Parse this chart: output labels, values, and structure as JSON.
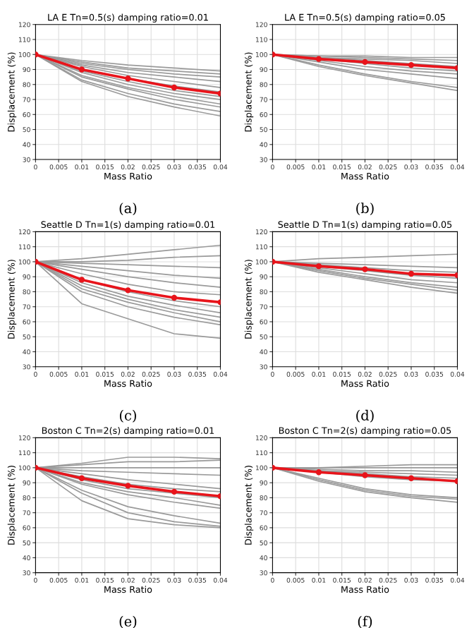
{
  "chart_data": [
    {
      "type": "line",
      "title": "LA E Tn=0.5(s) damping ratio=0.01",
      "xlabel": "Mass Ratio",
      "ylabel": "Displacement (%)",
      "x": [
        0,
        0.01,
        0.02,
        0.03,
        0.04
      ],
      "xlim": [
        0,
        0.04
      ],
      "xticks": [
        0,
        0.005,
        0.01,
        0.015,
        0.02,
        0.025,
        0.03,
        0.035,
        0.04
      ],
      "ylim": [
        30,
        120
      ],
      "yticks": [
        30,
        40,
        50,
        60,
        70,
        80,
        90,
        100,
        110,
        120
      ],
      "grid": true,
      "annotations": [
        "(a)"
      ],
      "series": [
        {
          "color": "#9a9a9a",
          "values": [
            100,
            96,
            93,
            91,
            89
          ]
        },
        {
          "color": "#9a9a9a",
          "values": [
            100,
            95,
            91,
            89,
            87
          ]
        },
        {
          "color": "#9a9a9a",
          "values": [
            100,
            94,
            90,
            87,
            85
          ]
        },
        {
          "color": "#9a9a9a",
          "values": [
            100,
            93,
            88,
            85,
            82
          ]
        },
        {
          "color": "#9a9a9a",
          "values": [
            100,
            92,
            86,
            82,
            78
          ]
        },
        {
          "color": "#9a9a9a",
          "values": [
            100,
            90,
            84,
            79,
            75
          ]
        },
        {
          "color": "#9a9a9a",
          "values": [
            100,
            89,
            82,
            76,
            72
          ]
        },
        {
          "color": "#9a9a9a",
          "values": [
            100,
            88,
            80,
            74,
            70
          ]
        },
        {
          "color": "#9a9a9a",
          "values": [
            100,
            86,
            78,
            72,
            67
          ]
        },
        {
          "color": "#9a9a9a",
          "values": [
            100,
            85,
            77,
            70,
            65
          ]
        },
        {
          "color": "#9a9a9a",
          "values": [
            100,
            83,
            74,
            67,
            62
          ]
        },
        {
          "color": "#9a9a9a",
          "values": [
            100,
            82,
            72,
            65,
            59
          ]
        },
        {
          "color": "#e8141b",
          "marker": "circle",
          "values": [
            100,
            90,
            84,
            78,
            74
          ]
        }
      ]
    },
    {
      "type": "line",
      "title": "LA E Tn=0.5(s) damping ratio=0.05",
      "xlabel": "Mass Ratio",
      "ylabel": "Displacement (%)",
      "x": [
        0,
        0.01,
        0.02,
        0.03,
        0.04
      ],
      "xlim": [
        0,
        0.04
      ],
      "xticks": [
        0,
        0.005,
        0.01,
        0.015,
        0.02,
        0.025,
        0.03,
        0.035,
        0.04
      ],
      "ylim": [
        30,
        120
      ],
      "yticks": [
        30,
        40,
        50,
        60,
        70,
        80,
        90,
        100,
        110,
        120
      ],
      "grid": true,
      "annotations": [
        "(b)"
      ],
      "series": [
        {
          "color": "#9a9a9a",
          "values": [
            100,
            99,
            99,
            98,
            98
          ]
        },
        {
          "color": "#9a9a9a",
          "values": [
            100,
            99,
            98,
            97,
            96
          ]
        },
        {
          "color": "#9a9a9a",
          "values": [
            100,
            98,
            97,
            96,
            94
          ]
        },
        {
          "color": "#9a9a9a",
          "values": [
            100,
            98,
            96,
            94,
            92
          ]
        },
        {
          "color": "#9a9a9a",
          "values": [
            100,
            97,
            94,
            91,
            89
          ]
        },
        {
          "color": "#9a9a9a",
          "values": [
            100,
            96,
            92,
            89,
            87
          ]
        },
        {
          "color": "#9a9a9a",
          "values": [
            100,
            95,
            90,
            87,
            84
          ]
        },
        {
          "color": "#9a9a9a",
          "values": [
            100,
            93,
            87,
            82,
            78
          ]
        },
        {
          "color": "#9a9a9a",
          "values": [
            100,
            92,
            86,
            81,
            76
          ]
        },
        {
          "color": "#e8141b",
          "marker": "circle",
          "values": [
            100,
            97,
            95,
            93,
            91
          ]
        }
      ]
    },
    {
      "type": "line",
      "title": "Seattle D Tn=1(s) damping ratio=0.01",
      "xlabel": "Mass Ratio",
      "ylabel": "Displacement (%)",
      "x": [
        0,
        0.01,
        0.02,
        0.03,
        0.04
      ],
      "xlim": [
        0,
        0.04
      ],
      "xticks": [
        0,
        0.005,
        0.01,
        0.015,
        0.02,
        0.025,
        0.03,
        0.035,
        0.04
      ],
      "ylim": [
        30,
        120
      ],
      "yticks": [
        30,
        40,
        50,
        60,
        70,
        80,
        90,
        100,
        110,
        120
      ],
      "grid": true,
      "annotations": [
        "(c)"
      ],
      "series": [
        {
          "color": "#9a9a9a",
          "values": [
            100,
            102,
            105,
            108,
            111
          ]
        },
        {
          "color": "#9a9a9a",
          "values": [
            100,
            100,
            101,
            103,
            104
          ]
        },
        {
          "color": "#9a9a9a",
          "values": [
            100,
            99,
            98,
            97,
            96
          ]
        },
        {
          "color": "#9a9a9a",
          "values": [
            100,
            97,
            94,
            91,
            89
          ]
        },
        {
          "color": "#9a9a9a",
          "values": [
            100,
            95,
            90,
            86,
            83
          ]
        },
        {
          "color": "#9a9a9a",
          "values": [
            100,
            92,
            85,
            80,
            78
          ]
        },
        {
          "color": "#9a9a9a",
          "values": [
            100,
            88,
            80,
            74,
            70
          ]
        },
        {
          "color": "#9a9a9a",
          "values": [
            100,
            86,
            77,
            71,
            66
          ]
        },
        {
          "color": "#9a9a9a",
          "values": [
            100,
            84,
            75,
            68,
            63
          ]
        },
        {
          "color": "#9a9a9a",
          "values": [
            100,
            82,
            73,
            66,
            60
          ]
        },
        {
          "color": "#9a9a9a",
          "values": [
            100,
            80,
            70,
            63,
            58
          ]
        },
        {
          "color": "#9a9a9a",
          "values": [
            100,
            72,
            62,
            52,
            49
          ]
        },
        {
          "color": "#e8141b",
          "marker": "circle",
          "values": [
            100,
            88,
            81,
            76,
            73
          ]
        }
      ]
    },
    {
      "type": "line",
      "title": "Seattle D Tn=1(s) damping ratio=0.05",
      "xlabel": "Mass Ratio",
      "ylabel": "Displacement (%)",
      "x": [
        0,
        0.01,
        0.02,
        0.03,
        0.04
      ],
      "xlim": [
        0,
        0.04
      ],
      "xticks": [
        0,
        0.005,
        0.01,
        0.015,
        0.02,
        0.025,
        0.03,
        0.035,
        0.04
      ],
      "ylim": [
        30,
        120
      ],
      "yticks": [
        30,
        40,
        50,
        60,
        70,
        80,
        90,
        100,
        110,
        120
      ],
      "grid": true,
      "annotations": [
        "(d)"
      ],
      "series": [
        {
          "color": "#9a9a9a",
          "values": [
            100,
            102,
            103,
            104,
            105
          ]
        },
        {
          "color": "#9a9a9a",
          "values": [
            100,
            99,
            98,
            97,
            96
          ]
        },
        {
          "color": "#9a9a9a",
          "values": [
            100,
            98,
            96,
            94,
            93
          ]
        },
        {
          "color": "#9a9a9a",
          "values": [
            100,
            97,
            94,
            91,
            89
          ]
        },
        {
          "color": "#9a9a9a",
          "values": [
            100,
            96,
            92,
            88,
            86
          ]
        },
        {
          "color": "#9a9a9a",
          "values": [
            100,
            95,
            90,
            86,
            83
          ]
        },
        {
          "color": "#9a9a9a",
          "values": [
            100,
            94,
            89,
            85,
            81
          ]
        },
        {
          "color": "#9a9a9a",
          "values": [
            100,
            93,
            88,
            83,
            79
          ]
        },
        {
          "color": "#e8141b",
          "marker": "circle",
          "values": [
            100,
            97,
            95,
            92,
            91
          ]
        }
      ]
    },
    {
      "type": "line",
      "title": "Boston C Tn=2(s) damping ratio=0.01",
      "xlabel": "Mass Ratio",
      "ylabel": "Displacement (%)",
      "x": [
        0,
        0.01,
        0.02,
        0.03,
        0.04
      ],
      "xlim": [
        0,
        0.04
      ],
      "xticks": [
        0,
        0.005,
        0.01,
        0.015,
        0.02,
        0.025,
        0.03,
        0.035,
        0.04
      ],
      "ylim": [
        30,
        120
      ],
      "yticks": [
        30,
        40,
        50,
        60,
        70,
        80,
        90,
        100,
        110,
        120
      ],
      "grid": true,
      "annotations": [
        "(e)"
      ],
      "series": [
        {
          "color": "#9a9a9a",
          "values": [
            100,
            103,
            107,
            107,
            106
          ]
        },
        {
          "color": "#9a9a9a",
          "values": [
            100,
            102,
            104,
            104,
            105
          ]
        },
        {
          "color": "#9a9a9a",
          "values": [
            100,
            100,
            100,
            100,
            100
          ]
        },
        {
          "color": "#9a9a9a",
          "values": [
            100,
            98,
            97,
            96,
            95
          ]
        },
        {
          "color": "#9a9a9a",
          "values": [
            100,
            96,
            92,
            89,
            86
          ]
        },
        {
          "color": "#9a9a9a",
          "values": [
            100,
            94,
            89,
            86,
            84
          ]
        },
        {
          "color": "#9a9a9a",
          "values": [
            100,
            92,
            86,
            83,
            80
          ]
        },
        {
          "color": "#9a9a9a",
          "values": [
            100,
            90,
            84,
            80,
            75
          ]
        },
        {
          "color": "#9a9a9a",
          "values": [
            100,
            89,
            82,
            77,
            73
          ]
        },
        {
          "color": "#9a9a9a",
          "values": [
            100,
            85,
            74,
            68,
            63
          ]
        },
        {
          "color": "#9a9a9a",
          "values": [
            100,
            83,
            70,
            64,
            61
          ]
        },
        {
          "color": "#9a9a9a",
          "values": [
            100,
            78,
            66,
            62,
            60
          ]
        },
        {
          "color": "#e8141b",
          "marker": "circle",
          "values": [
            100,
            93,
            88,
            84,
            81
          ]
        }
      ]
    },
    {
      "type": "line",
      "title": "Boston C Tn=2(s) damping ratio=0.05",
      "xlabel": "Mass Ratio",
      "ylabel": "Displacement (%)",
      "x": [
        0,
        0.01,
        0.02,
        0.03,
        0.04
      ],
      "xlim": [
        0,
        0.04
      ],
      "xticks": [
        0,
        0.005,
        0.01,
        0.015,
        0.02,
        0.025,
        0.03,
        0.035,
        0.04
      ],
      "ylim": [
        30,
        120
      ],
      "yticks": [
        30,
        40,
        50,
        60,
        70,
        80,
        90,
        100,
        110,
        120
      ],
      "grid": true,
      "annotations": [
        "(f)"
      ],
      "series": [
        {
          "color": "#9a9a9a",
          "values": [
            100,
            100,
            101,
            102,
            102
          ]
        },
        {
          "color": "#9a9a9a",
          "values": [
            100,
            100,
            100,
            100,
            100
          ]
        },
        {
          "color": "#9a9a9a",
          "values": [
            100,
            99,
            98,
            98,
            97
          ]
        },
        {
          "color": "#9a9a9a",
          "values": [
            100,
            98,
            97,
            96,
            95
          ]
        },
        {
          "color": "#9a9a9a",
          "values": [
            100,
            98,
            96,
            94,
            93
          ]
        },
        {
          "color": "#9a9a9a",
          "values": [
            100,
            97,
            94,
            92,
            91
          ]
        },
        {
          "color": "#9a9a9a",
          "values": [
            100,
            93,
            86,
            82,
            80
          ]
        },
        {
          "color": "#9a9a9a",
          "values": [
            100,
            92,
            85,
            81,
            79
          ]
        },
        {
          "color": "#9a9a9a",
          "values": [
            100,
            91,
            84,
            80,
            77
          ]
        },
        {
          "color": "#e8141b",
          "marker": "circle",
          "values": [
            100,
            97,
            95,
            93,
            91
          ]
        }
      ]
    }
  ]
}
